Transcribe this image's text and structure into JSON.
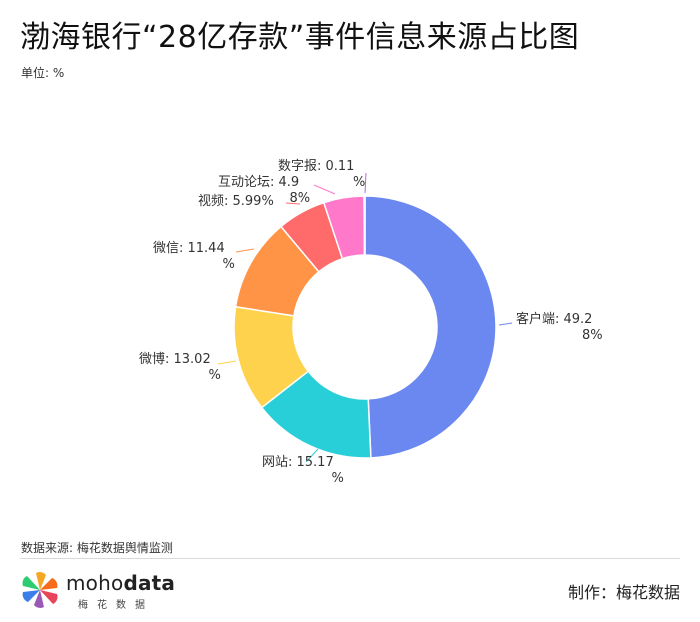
{
  "header": {
    "title": "渤海银行“28亿存款”事件信息来源占比图",
    "unit": "单位: %"
  },
  "chart_data": {
    "type": "pie",
    "donut": true,
    "categories": [
      "客户端",
      "网站",
      "微博",
      "微信",
      "视频",
      "互动论坛",
      "数字报"
    ],
    "values": [
      49.28,
      15.17,
      13.02,
      11.44,
      5.99,
      4.98,
      0.11
    ],
    "labels": [
      [
        "客户端: 49.2",
        "8%"
      ],
      [
        "网站: 15.17",
        "%"
      ],
      [
        "微博: 13.02",
        "%"
      ],
      [
        "微信: 11.44",
        "%"
      ],
      [
        "视频: 5.99%"
      ],
      [
        "互动论坛: 4.9",
        "8%"
      ],
      [
        "数字报: 0.11",
        "%"
      ]
    ],
    "colors": [
      "#6b87f0",
      "#29cfd8",
      "#ffd24d",
      "#ff9447",
      "#ff6b6b",
      "#ff78c9",
      "#b06ad6"
    ]
  },
  "footer": {
    "source": "数据来源: 梅花数据舆情监测",
    "logo_brand_light": "moho",
    "logo_brand_bold": "data",
    "logo_sub": "梅花数据",
    "maker": "制作：梅花数据"
  }
}
